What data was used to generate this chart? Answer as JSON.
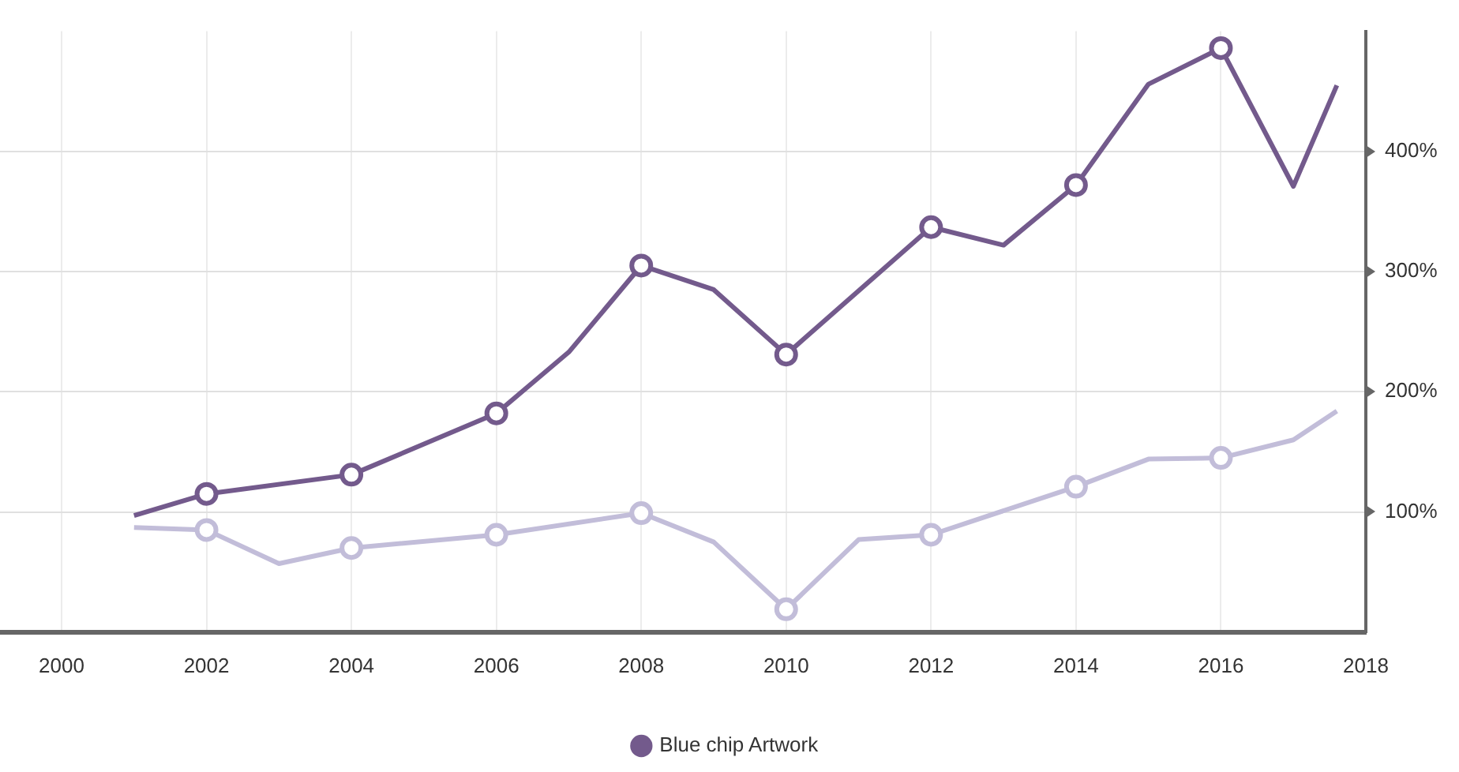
{
  "chart_data": {
    "type": "line",
    "xlim": [
      1999.15,
      2018
    ],
    "xticks": [
      2000,
      2002,
      2004,
      2006,
      2008,
      2010,
      2012,
      2014,
      2016,
      2018
    ],
    "ylim": [
      0,
      500
    ],
    "yticks": [
      {
        "value": 100,
        "label": "100%"
      },
      {
        "value": 200,
        "label": "200%"
      },
      {
        "value": 300,
        "label": "300%"
      },
      {
        "value": 400,
        "label": "400%"
      }
    ],
    "grid": true,
    "legend": "bottom",
    "marker": "circle",
    "line_style": "solid",
    "series": [
      {
        "name": "Blue chip Artwork",
        "color": "#735a8c",
        "x": [
          2001,
          2002,
          2004,
          2006,
          2007,
          2008,
          2009,
          2010,
          2012,
          2013,
          2014,
          2015,
          2016,
          2017,
          2017.6
        ],
        "values": [
          97,
          115,
          131,
          182,
          233,
          305,
          285,
          231,
          337,
          322,
          372,
          456,
          486,
          371,
          455
        ]
      },
      {
        "color": "#c2bdd9",
        "x": [
          2001,
          2002,
          2003,
          2004,
          2006,
          2008,
          2009,
          2010,
          2011,
          2012,
          2014,
          2015,
          2016,
          2017,
          2017.6
        ],
        "values": [
          87,
          85,
          57,
          70,
          81,
          99,
          75,
          19,
          77,
          81,
          121,
          144,
          145,
          160,
          184
        ]
      }
    ]
  }
}
